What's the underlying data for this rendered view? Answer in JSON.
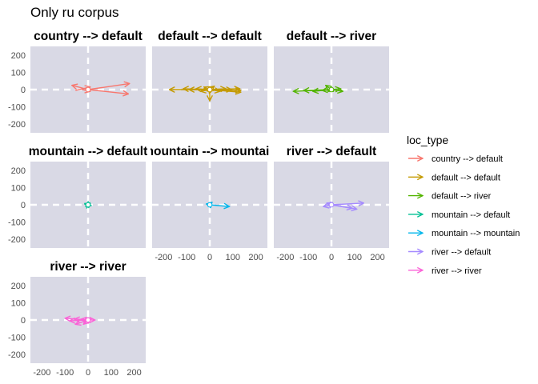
{
  "chart_data": {
    "type": "vector-field-facets",
    "title": "Only ru corpus",
    "xlim": [
      -250,
      250
    ],
    "ylim": [
      -250,
      250
    ],
    "x_ticks": [
      -200,
      -100,
      0,
      100,
      200
    ],
    "y_ticks": [
      -200,
      -100,
      0,
      100,
      200
    ],
    "x_tick_labels": [
      "-200",
      "-100",
      "0",
      "100",
      "200"
    ],
    "y_tick_labels": [
      "-200",
      "-100",
      "0",
      "100",
      "200"
    ],
    "reference_lines": {
      "x": 0,
      "y": 0,
      "style": "white-dashed"
    },
    "legend": {
      "title": "loc_type",
      "position": "right",
      "entries": [
        {
          "label": "country --> default",
          "color": "#F8766D"
        },
        {
          "label": "default --> default",
          "color": "#C49A00"
        },
        {
          "label": "default --> river",
          "color": "#53B400"
        },
        {
          "label": "mountain --> default",
          "color": "#00C094"
        },
        {
          "label": "mountain --> mountain",
          "color": "#00B6EB"
        },
        {
          "label": "river --> default",
          "color": "#A58AFF"
        },
        {
          "label": "river --> river",
          "color": "#FB61D7"
        }
      ]
    },
    "facets": [
      {
        "label": "country --> default",
        "color": "#F8766D",
        "vectors": [
          [
            0,
            0,
            180,
            35
          ],
          [
            0,
            0,
            175,
            -25
          ],
          [
            0,
            0,
            -70,
            25
          ],
          [
            -55,
            -5,
            10,
            15
          ],
          [
            -25,
            0,
            10,
            -10
          ]
        ]
      },
      {
        "label": "default --> default",
        "color": "#C49A00",
        "vectors": [
          [
            0,
            0,
            -175,
            0
          ],
          [
            0,
            0,
            -115,
            5
          ],
          [
            0,
            0,
            -90,
            0
          ],
          [
            0,
            0,
            -60,
            5
          ],
          [
            0,
            0,
            -40,
            -10
          ],
          [
            0,
            0,
            -25,
            15
          ],
          [
            0,
            0,
            20,
            20
          ],
          [
            0,
            0,
            45,
            -10
          ],
          [
            0,
            0,
            70,
            5
          ],
          [
            0,
            0,
            95,
            0
          ],
          [
            0,
            0,
            130,
            5
          ],
          [
            0,
            0,
            135,
            -15
          ],
          [
            0,
            0,
            135,
            -5
          ],
          [
            0,
            0,
            0,
            -65
          ],
          [
            0,
            0,
            10,
            15
          ],
          [
            0,
            0,
            -5,
            10
          ]
        ]
      },
      {
        "label": "default --> river",
        "color": "#53B400",
        "vectors": [
          [
            0,
            0,
            -165,
            -10
          ],
          [
            0,
            0,
            -120,
            -5
          ],
          [
            0,
            0,
            -80,
            -10
          ],
          [
            0,
            0,
            -40,
            -5
          ],
          [
            0,
            0,
            -25,
            25
          ],
          [
            0,
            0,
            40,
            5
          ],
          [
            0,
            0,
            50,
            -10
          ],
          [
            0,
            0,
            -15,
            -10
          ]
        ]
      },
      {
        "label": "mountain --> default",
        "color": "#00C094",
        "vectors": [
          [
            0,
            0,
            -15,
            5
          ],
          [
            0,
            0,
            -10,
            -10
          ],
          [
            0,
            0,
            10,
            5
          ]
        ]
      },
      {
        "label": "mountain --> mountain",
        "color": "#00B6EB",
        "vectors": [
          [
            0,
            0,
            85,
            -10
          ],
          [
            0,
            0,
            -15,
            5
          ],
          [
            0,
            0,
            10,
            15
          ]
        ]
      },
      {
        "label": "river --> default",
        "color": "#A58AFF",
        "vectors": [
          [
            0,
            0,
            140,
            10
          ],
          [
            0,
            0,
            110,
            -25
          ],
          [
            0,
            0,
            90,
            -20
          ],
          [
            0,
            0,
            -35,
            -10
          ],
          [
            0,
            0,
            -20,
            10
          ],
          [
            0,
            0,
            -5,
            15
          ]
        ]
      },
      {
        "label": "river --> river",
        "color": "#FB61D7",
        "vectors": [
          [
            0,
            0,
            -100,
            10
          ],
          [
            0,
            0,
            -80,
            -5
          ],
          [
            0,
            0,
            -60,
            5
          ],
          [
            0,
            0,
            -55,
            -25
          ],
          [
            0,
            0,
            -30,
            5
          ],
          [
            0,
            0,
            -20,
            -25
          ],
          [
            0,
            0,
            -10,
            10
          ],
          [
            0,
            0,
            30,
            0
          ]
        ]
      }
    ]
  }
}
